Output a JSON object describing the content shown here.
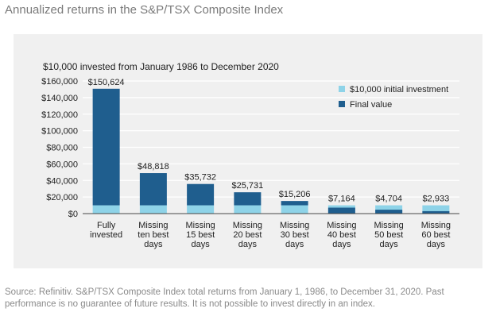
{
  "page": {
    "title": "Annualized returns in the S&P/TSX Composite Index",
    "footer": "Source: Refinitiv. S&P/TSX Composite Index total returns from January 1, 1986, to December 31, 2020. Past performance is no guarantee of future results. It is not possible to invest directly in an index."
  },
  "chart_data": {
    "type": "bar",
    "title": "$10,000 invested from January 1986 to December 2020",
    "categories": [
      [
        "Fully",
        "invested"
      ],
      [
        "Missing",
        "ten best",
        "days"
      ],
      [
        "Missing",
        "15 best",
        "days"
      ],
      [
        "Missing",
        "20 best",
        "days"
      ],
      [
        "Missing",
        "30 best",
        "days"
      ],
      [
        "Missing",
        "40 best",
        "days"
      ],
      [
        "Missing",
        "50 best",
        "days"
      ],
      [
        "Missing",
        "60 best",
        "days"
      ]
    ],
    "series": [
      {
        "name": "$10,000 initial investment",
        "color": "#8ed3e8",
        "values": [
          10000,
          10000,
          10000,
          10000,
          10000,
          10000,
          10000,
          10000
        ]
      },
      {
        "name": "Final value",
        "color": "#1f5e8e",
        "values": [
          150624,
          48818,
          35732,
          25731,
          15206,
          7164,
          4704,
          2933
        ]
      }
    ],
    "data_labels": [
      "$150,624",
      "$48,818",
      "$35,732",
      "$25,731",
      "$15,206",
      "$7,164",
      "$4,704",
      "$2,933"
    ],
    "y_ticks": [
      "$0",
      "$20,000",
      "$40,000",
      "$60,000",
      "$80,000",
      "$100,000",
      "$120,000",
      "$140,000",
      "$160,000"
    ],
    "ylim": [
      0,
      160000
    ],
    "grid": true,
    "legend_position": "top-right"
  }
}
